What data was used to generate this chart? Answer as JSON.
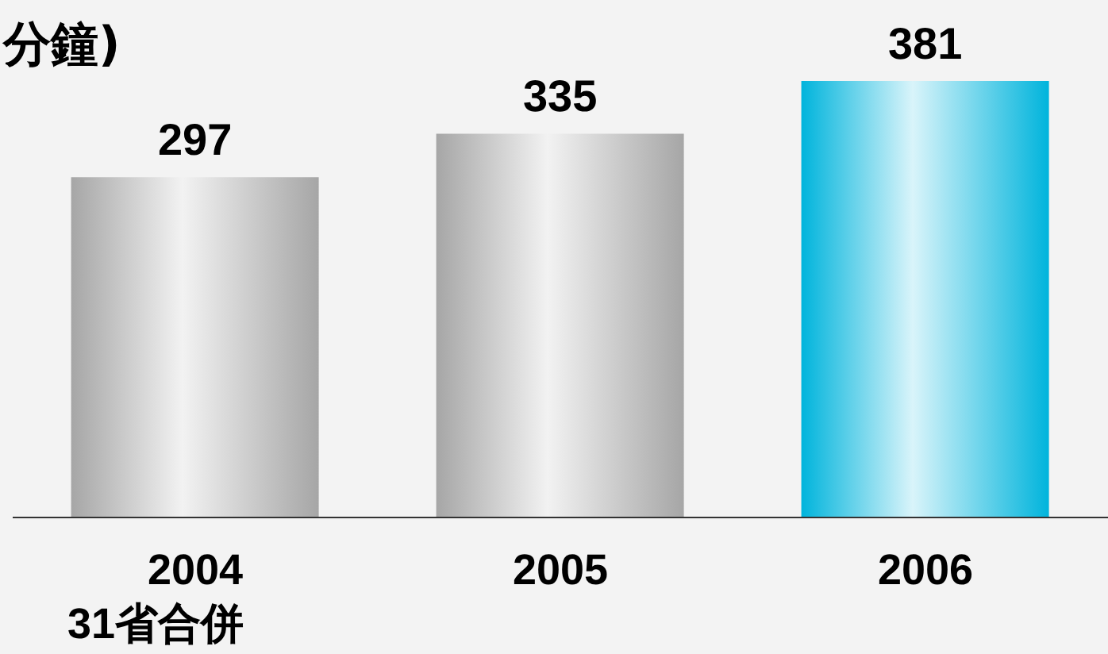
{
  "chart_data": {
    "type": "bar",
    "title": "分鐘)",
    "categories": [
      "2004\n31省合併",
      "2005",
      "2006"
    ],
    "values": [
      297,
      335,
      381
    ],
    "colors": [
      "#a6a6a6",
      "#a6a6a6",
      "#00b4dc"
    ],
    "data_labels": true
  }
}
